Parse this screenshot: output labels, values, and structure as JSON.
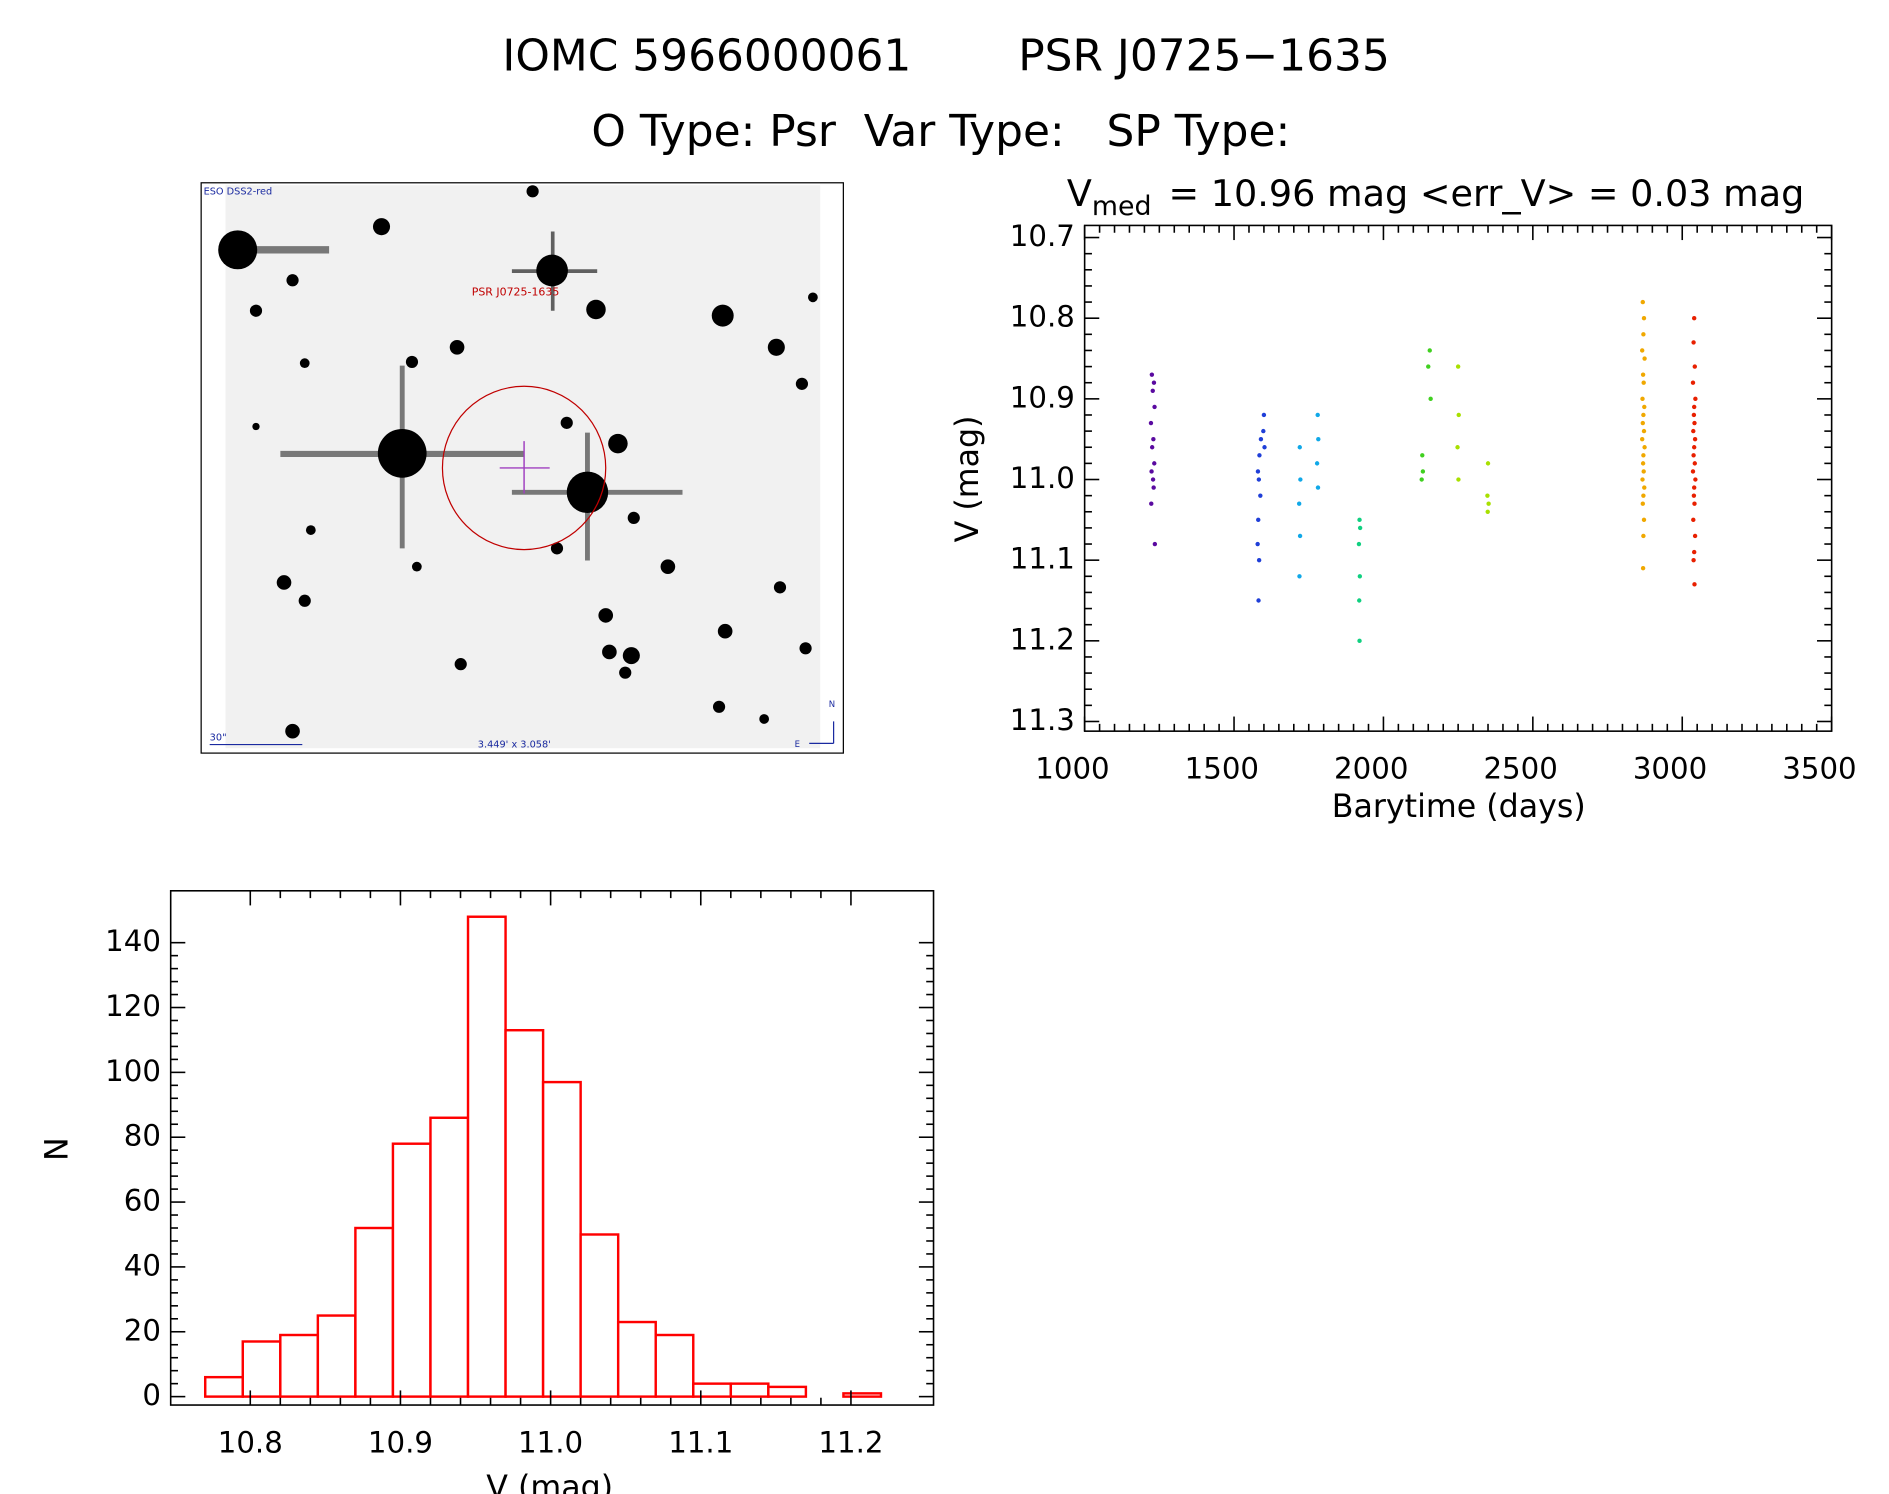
{
  "title": [
    "IOMC 5966000061",
    "PSR J0725−1635"
  ],
  "subtitle": "O Type: Psr  Var Type:   SP Type:",
  "finder": {
    "survey": "ESO DSS2-red",
    "target": "PSR J0725-1635",
    "scale": "30\"",
    "size": "3.449' x 3.058'",
    "north": "N",
    "east": "E"
  },
  "chart_data": [
    {
      "type": "scatter",
      "title": {
        "main": "V",
        "sub": "med",
        "rest": "= 10.96 mag <err_V> = 0.03 mag"
      },
      "x_label": "Barytime (days)",
      "y_label": "V (mag)",
      "xlim": [
        1000,
        3500
      ],
      "ylim": [
        11.312,
        10.685
      ],
      "xticks": [
        1000,
        1500,
        2000,
        2500,
        3000,
        3500
      ],
      "yticks": [
        10.7,
        10.8,
        10.9,
        {
          "value": 11,
          "label": "11.0"
        },
        11.1,
        11.2,
        11.3
      ],
      "series": [
        {
          "color": "#5a0aa0",
          "x": [
            1225,
            1232,
            1228,
            1234,
            1222,
            1230,
            1226,
            1233,
            1224,
            1229,
            1231,
            1223,
            1235
          ],
          "values": [
            10.87,
            10.88,
            10.89,
            10.91,
            10.93,
            10.95,
            10.96,
            10.98,
            10.99,
            11.0,
            11.01,
            11.03,
            11.08
          ]
        },
        {
          "color": "#1f3fd8",
          "x": [
            1600,
            1598,
            1590,
            1602,
            1585,
            1580,
            1583,
            1588,
            1581,
            1579,
            1584,
            1582
          ],
          "values": [
            10.92,
            10.94,
            10.95,
            10.96,
            10.97,
            10.99,
            11.0,
            11.02,
            11.05,
            11.08,
            11.1,
            11.15
          ]
        },
        {
          "color": "#10a8e8",
          "x": [
            1780,
            1782,
            1720,
            1778,
            1722,
            1781,
            1718,
            1721,
            1719
          ],
          "values": [
            10.92,
            10.95,
            10.96,
            10.98,
            11.0,
            11.01,
            11.03,
            11.07,
            11.12
          ]
        },
        {
          "color": "#10d080",
          "x": [
            1920,
            1922,
            1918,
            1921,
            1919,
            1920
          ],
          "values": [
            11.05,
            11.06,
            11.08,
            11.12,
            11.15,
            11.2
          ]
        },
        {
          "color": "#40d020",
          "x": [
            2155,
            2150,
            2158,
            2130,
            2132,
            2128
          ],
          "values": [
            10.84,
            10.86,
            10.9,
            10.97,
            10.99,
            11.0
          ]
        },
        {
          "color": "#a8e000",
          "x": [
            2250,
            2252,
            2248,
            2350,
            2251,
            2352,
            2348,
            2349
          ],
          "values": [
            10.86,
            10.92,
            10.96,
            10.98,
            11.0,
            11.03,
            11.02,
            11.04
          ]
        },
        {
          "color": "#f0a800",
          "x": [
            2868,
            2872,
            2870,
            2866,
            2874,
            2869,
            2871,
            2867,
            2873,
            2870,
            2868,
            2872,
            2866,
            2874,
            2870,
            2869,
            2871,
            2867,
            2873,
            2870,
            2868,
            2872,
            2870,
            2869
          ],
          "values": [
            10.78,
            10.8,
            10.82,
            10.84,
            10.85,
            10.87,
            10.88,
            10.9,
            10.91,
            10.92,
            10.93,
            10.94,
            10.95,
            10.96,
            10.97,
            10.98,
            10.99,
            11.0,
            11.01,
            11.02,
            11.03,
            11.05,
            11.07,
            11.11
          ]
        },
        {
          "color": "#e82000",
          "x": [
            3040,
            3038,
            3042,
            3036,
            3044,
            3040,
            3039,
            3041,
            3037,
            3043,
            3040,
            3038,
            3042,
            3036,
            3044,
            3040,
            3039,
            3041,
            3037,
            3043,
            3040,
            3038,
            3041
          ],
          "values": [
            10.8,
            10.83,
            10.86,
            10.88,
            10.9,
            10.91,
            10.92,
            10.93,
            10.94,
            10.95,
            10.96,
            10.97,
            10.98,
            10.99,
            11.0,
            11.01,
            11.02,
            11.03,
            11.05,
            11.07,
            11.09,
            11.1,
            11.13
          ]
        }
      ]
    },
    {
      "type": "histogram",
      "x_label": "V (mag)",
      "y_label": "N",
      "color": "#ff0000",
      "xlim": [
        10.747,
        11.255
      ],
      "ylim": [
        -2.6,
        156
      ],
      "xticks": [
        10.8,
        10.9,
        {
          "value": 11,
          "label": "11.0"
        },
        11.1,
        11.2
      ],
      "yticks": [
        0,
        20,
        40,
        60,
        80,
        100,
        120,
        140
      ],
      "bins": [
        10.77,
        10.795,
        10.82,
        10.845,
        10.87,
        10.895,
        10.92,
        10.945,
        10.97,
        10.995,
        11.02,
        11.045,
        11.07,
        11.095,
        11.12,
        11.145,
        11.17,
        11.195,
        11.22
      ],
      "values": [
        6,
        17,
        19,
        25,
        52,
        78,
        86,
        148,
        113,
        97,
        50,
        23,
        19,
        4,
        4,
        3,
        0,
        1
      ]
    }
  ]
}
